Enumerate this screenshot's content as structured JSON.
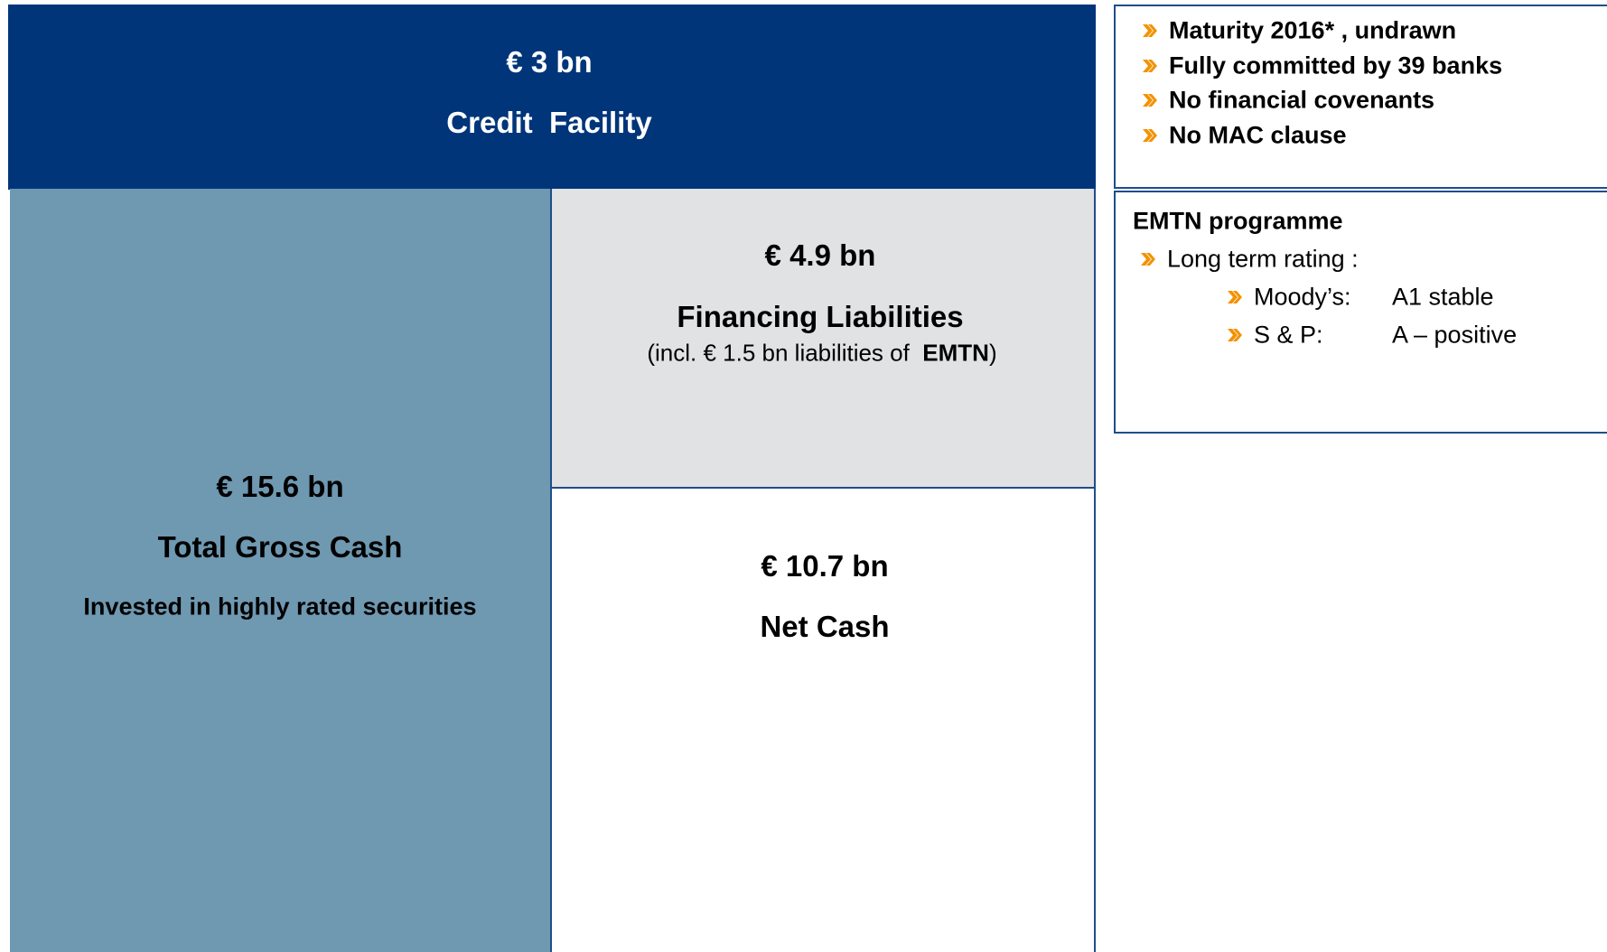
{
  "credit_facility": {
    "amount": "€ 3 bn",
    "label": "Credit  Facility"
  },
  "gross_cash": {
    "amount": "€ 15.6 bn",
    "label": "Total Gross Cash",
    "note": "Invested in highly rated securities"
  },
  "financing_liabilities": {
    "amount": "€ 4.9 bn",
    "label": "Financing Liabilities",
    "note": [
      "(incl. € 1.5 bn liabilities of  ",
      "EMTN",
      ")"
    ]
  },
  "net_cash": {
    "amount": "€ 10.7 bn",
    "label": "Net Cash"
  },
  "facility_terms": [
    "Maturity 2016* , undrawn",
    "Fully committed by 39 banks",
    "No financial covenants",
    "No MAC clause"
  ],
  "emtn": {
    "title": "EMTN programme",
    "rating_label": "Long term rating :",
    "ratings": [
      {
        "agency": "Moody’s:",
        "rating": "A1 stable"
      },
      {
        "agency": "S & P:",
        "rating": "A – positive"
      }
    ]
  }
}
